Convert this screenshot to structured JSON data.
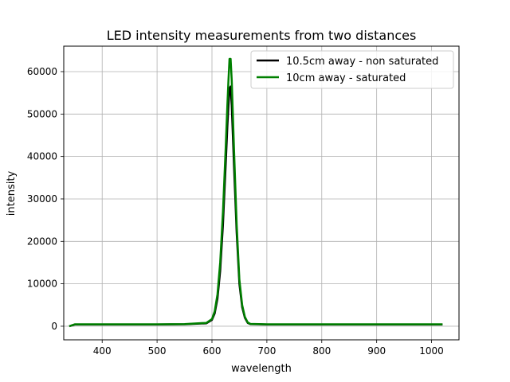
{
  "chart_data": {
    "type": "line",
    "title": "LED intensity measurements from two distances",
    "xlabel": "wavelength",
    "ylabel": "intensity",
    "xlim": [
      330,
      1050
    ],
    "ylim": [
      -3200,
      66000
    ],
    "grid": true,
    "legend_position": "top-right",
    "x_ticks": [
      400,
      500,
      600,
      700,
      800,
      900,
      1000
    ],
    "y_ticks": [
      0,
      10000,
      20000,
      30000,
      40000,
      50000,
      60000
    ],
    "series": [
      {
        "name": "10.5cm away - non saturated",
        "color": "#000000",
        "x": [
          340,
          350,
          400,
          500,
          550,
          590,
          600,
          605,
          610,
          615,
          620,
          625,
          628,
          630,
          632,
          634,
          636,
          638,
          640,
          645,
          650,
          655,
          660,
          665,
          670,
          700,
          800,
          900,
          1020
        ],
        "y": [
          0,
          400,
          400,
          400,
          450,
          700,
          1500,
          3000,
          6500,
          13000,
          24000,
          38000,
          47000,
          52000,
          56000,
          56500,
          52000,
          45000,
          38000,
          22000,
          10000,
          4500,
          2000,
          800,
          500,
          400,
          400,
          400,
          400
        ]
      },
      {
        "name": "10cm away - saturated",
        "color": "#008000",
        "x": [
          340,
          350,
          400,
          500,
          550,
          590,
          600,
          605,
          610,
          615,
          620,
          625,
          628,
          630,
          632,
          634,
          636,
          638,
          640,
          645,
          650,
          655,
          660,
          665,
          670,
          700,
          800,
          900,
          1020
        ],
        "y": [
          0,
          450,
          450,
          450,
          500,
          800,
          1700,
          3500,
          7500,
          15000,
          27000,
          42000,
          52000,
          58000,
          63000,
          63000,
          58000,
          50000,
          42000,
          24000,
          11000,
          5000,
          2200,
          900,
          550,
          450,
          450,
          450,
          450
        ]
      }
    ]
  }
}
